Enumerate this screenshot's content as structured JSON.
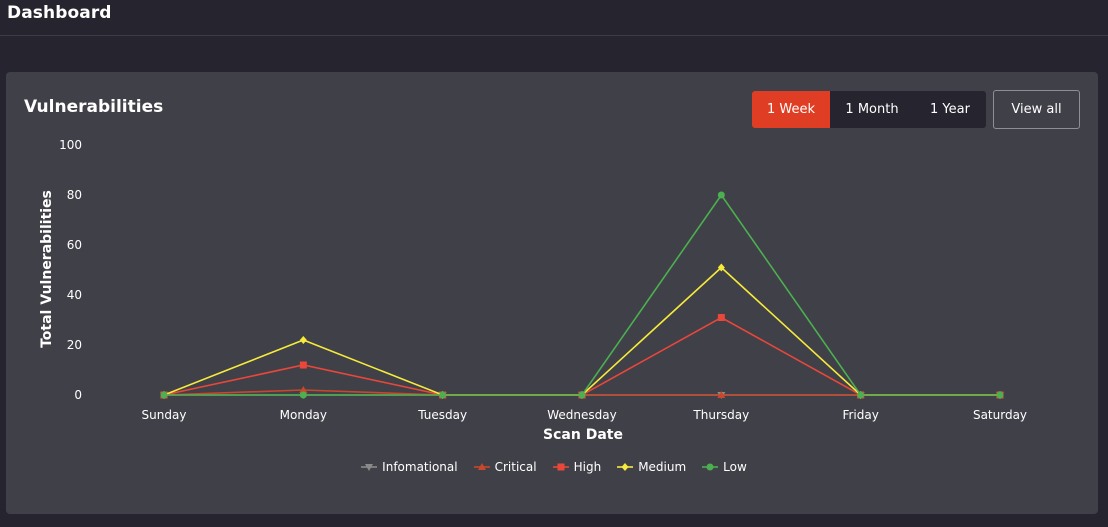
{
  "header": {
    "title": "Dashboard"
  },
  "card": {
    "title": "Vulnerabilities"
  },
  "range_tabs": [
    {
      "label": "1 Week",
      "active": true
    },
    {
      "label": "1 Month",
      "active": false
    },
    {
      "label": "1 Year",
      "active": false
    }
  ],
  "view_all_label": "View all",
  "colors": {
    "background": "#26252f",
    "card": "#404048",
    "accent": "#e03e24"
  },
  "chart_data": {
    "type": "line",
    "xlabel": "Scan Date",
    "ylabel": "Total Vulnerabilities",
    "categories": [
      "Sunday",
      "Monday",
      "Tuesday",
      "Wednesday",
      "Thursday",
      "Friday",
      "Saturday"
    ],
    "ylim": [
      0,
      100
    ],
    "yticks": [
      0,
      20,
      40,
      60,
      80,
      100
    ],
    "legend_position": "bottom",
    "series": [
      {
        "name": "Infomational",
        "color": "#8a8a8a",
        "marker": "triangle-down",
        "values": [
          0,
          0,
          0,
          0,
          0,
          0,
          0
        ]
      },
      {
        "name": "Critical",
        "color": "#c9482c",
        "marker": "triangle-up",
        "values": [
          0,
          2,
          0,
          0,
          0,
          0,
          0
        ]
      },
      {
        "name": "High",
        "color": "#e8473a",
        "marker": "square",
        "values": [
          0,
          12,
          0,
          0,
          31,
          0,
          0
        ]
      },
      {
        "name": "Medium",
        "color": "#f6ea3b",
        "marker": "diamond",
        "values": [
          0,
          22,
          0,
          0,
          51,
          0,
          0
        ]
      },
      {
        "name": "Low",
        "color": "#4caf50",
        "marker": "circle",
        "values": [
          0,
          0,
          0,
          0,
          80,
          0,
          0
        ]
      }
    ]
  }
}
